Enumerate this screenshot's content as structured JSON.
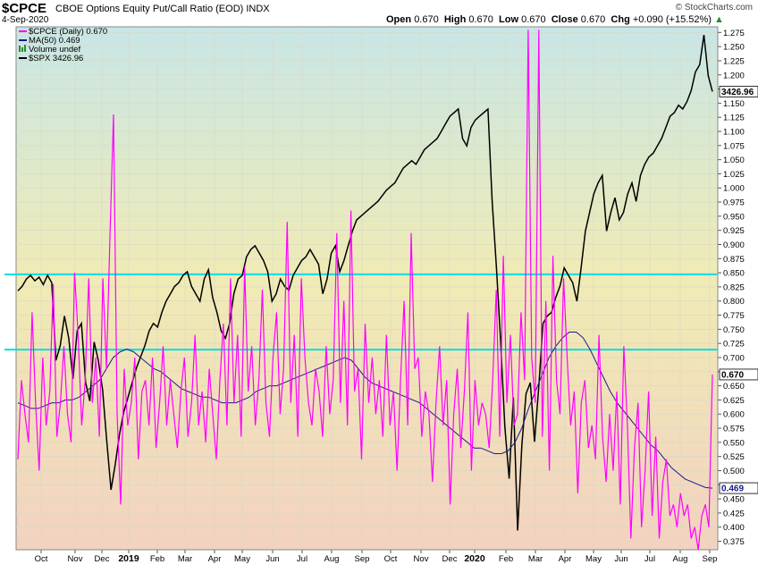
{
  "header": {
    "symbol": "$CPCE",
    "description": "CBOE Options Equity Put/Call Ratio (EOD)",
    "exchange": "INDX",
    "date": "4-Sep-2020",
    "open_label": "Open",
    "open": "0.670",
    "high_label": "High",
    "high": "0.670",
    "low_label": "Low",
    "low": "0.670",
    "close_label": "Close",
    "close": "0.670",
    "chg_label": "Chg",
    "chg": "+0.090 (+15.52%)",
    "brand": "© StockCharts.com"
  },
  "legend": [
    {
      "text": "$CPCE (Daily) 0.670",
      "color": "#ff00ff"
    },
    {
      "text": "MA(50) 0.469",
      "color": "#1a1a8c"
    },
    {
      "text": "Volume undef",
      "color": "#2e8b2e"
    },
    {
      "text": "$SPX 3426.96",
      "color": "#000000"
    }
  ],
  "colors": {
    "cpce": "#ff00ff",
    "ma": "#1a1a8c",
    "spx": "#000000",
    "hline": "#00e0e0",
    "bg_top": "#c8e6e6",
    "bg_mid": "#f0ebb4",
    "bg_bottom": "#f2d2c0"
  },
  "chart_data": {
    "type": "line",
    "title": "$CPCE CBOE Options Equity Put/Call Ratio (EOD)",
    "x_range": [
      "2018-09-10",
      "2020-09-04"
    ],
    "x_ticks": [
      "Oct",
      "Nov",
      "Dec",
      "2019",
      "Feb",
      "Mar",
      "Apr",
      "May",
      "Jun",
      "Jul",
      "Aug",
      "Sep",
      "Oct",
      "Nov",
      "Dec",
      "2020",
      "Feb",
      "Mar",
      "Apr",
      "May",
      "Jun",
      "Jul",
      "Aug",
      "Sep"
    ],
    "y_ticks": [
      "1.275",
      "1.250",
      "1.225",
      "1.200",
      "1.175",
      "1.150",
      "1.125",
      "1.100",
      "1.075",
      "1.050",
      "1.025",
      "1.000",
      "0.975",
      "0.950",
      "0.925",
      "0.900",
      "0.875",
      "0.850",
      "0.825",
      "0.800",
      "0.775",
      "0.750",
      "0.725",
      "0.700",
      "0.675",
      "0.650",
      "0.625",
      "0.600",
      "0.575",
      "0.550",
      "0.525",
      "0.500",
      "0.475",
      "0.450",
      "0.425",
      "0.400",
      "0.375"
    ],
    "ylim": [
      0.36,
      1.285
    ],
    "horizontal_lines": [
      0.847,
      0.714
    ],
    "last_labels": {
      "spx": "3426.96",
      "cpce": "0.670",
      "ma": "0.469"
    },
    "series": [
      {
        "name": "$CPCE (Daily)",
        "color": "#ff00ff",
        "values": [
          0.52,
          0.66,
          0.6,
          0.55,
          0.78,
          0.62,
          0.5,
          0.7,
          0.58,
          0.64,
          0.83,
          0.56,
          0.62,
          0.72,
          0.6,
          0.55,
          0.85,
          0.74,
          0.58,
          0.66,
          0.84,
          0.62,
          0.7,
          0.56,
          0.84,
          0.68,
          0.92,
          1.13,
          0.6,
          0.44,
          0.68,
          0.58,
          0.62,
          0.7,
          0.52,
          0.64,
          0.66,
          0.58,
          0.7,
          0.54,
          0.62,
          0.72,
          0.58,
          0.66,
          0.6,
          0.54,
          0.64,
          0.7,
          0.56,
          0.62,
          0.74,
          0.58,
          0.64,
          0.55,
          0.68,
          0.6,
          0.52,
          0.66,
          0.76,
          0.58,
          0.84,
          0.62,
          0.74,
          0.56,
          0.86,
          0.64,
          0.72,
          0.58,
          0.66,
          0.82,
          0.62,
          0.56,
          0.7,
          0.78,
          0.6,
          0.68,
          0.94,
          0.62,
          0.74,
          0.56,
          0.84,
          0.7,
          0.62,
          0.58,
          0.68,
          0.64,
          0.56,
          0.72,
          0.6,
          0.66,
          0.92,
          0.62,
          0.8,
          0.58,
          0.96,
          0.64,
          0.68,
          0.52,
          0.76,
          0.62,
          0.7,
          0.6,
          0.66,
          0.56,
          0.74,
          0.58,
          0.64,
          0.5,
          0.66,
          0.8,
          0.58,
          0.92,
          0.68,
          0.7,
          0.56,
          0.64,
          0.6,
          0.48,
          0.62,
          0.72,
          0.58,
          0.66,
          0.44,
          0.6,
          0.68,
          0.54,
          0.64,
          0.78,
          0.5,
          0.66,
          0.58,
          0.62,
          0.6,
          0.54,
          0.66,
          0.82,
          0.56,
          0.88,
          0.62,
          0.74,
          0.58,
          0.6,
          0.78,
          0.66,
          1.28,
          0.7,
          0.62,
          1.28,
          0.56,
          0.8,
          0.5,
          0.88,
          0.66,
          0.6,
          0.84,
          0.7,
          0.58,
          0.64,
          0.46,
          0.62,
          0.66,
          0.54,
          0.58,
          0.52,
          0.74,
          0.56,
          0.48,
          0.6,
          0.5,
          0.64,
          0.44,
          0.72,
          0.58,
          0.38,
          0.54,
          0.62,
          0.4,
          0.5,
          0.64,
          0.42,
          0.56,
          0.38,
          0.48,
          0.52,
          0.42,
          0.44,
          0.4,
          0.46,
          0.42,
          0.44,
          0.38,
          0.4,
          0.36,
          0.42,
          0.44,
          0.4,
          0.67
        ]
      },
      {
        "name": "MA(50)",
        "color": "#1a1a8c",
        "values": [
          0.62,
          0.615,
          0.61,
          0.61,
          0.615,
          0.62,
          0.62,
          0.625,
          0.625,
          0.63,
          0.64,
          0.65,
          0.66,
          0.68,
          0.7,
          0.71,
          0.715,
          0.71,
          0.7,
          0.69,
          0.68,
          0.675,
          0.665,
          0.655,
          0.645,
          0.64,
          0.635,
          0.63,
          0.63,
          0.625,
          0.62,
          0.62,
          0.62,
          0.625,
          0.63,
          0.64,
          0.645,
          0.65,
          0.65,
          0.655,
          0.66,
          0.665,
          0.67,
          0.675,
          0.68,
          0.685,
          0.69,
          0.695,
          0.7,
          0.695,
          0.68,
          0.665,
          0.655,
          0.65,
          0.645,
          0.64,
          0.635,
          0.63,
          0.625,
          0.62,
          0.61,
          0.6,
          0.59,
          0.58,
          0.57,
          0.56,
          0.55,
          0.54,
          0.54,
          0.535,
          0.53,
          0.53,
          0.535,
          0.55,
          0.575,
          0.61,
          0.64,
          0.67,
          0.7,
          0.72,
          0.735,
          0.745,
          0.745,
          0.735,
          0.715,
          0.69,
          0.665,
          0.64,
          0.62,
          0.605,
          0.59,
          0.575,
          0.56,
          0.545,
          0.535,
          0.52,
          0.505,
          0.495,
          0.485,
          0.48,
          0.475,
          0.47,
          0.469
        ]
      },
      {
        "name": "$SPX",
        "color": "#000000",
        "values": [
          2888,
          2900,
          2920,
          2930,
          2915,
          2925,
          2905,
          2930,
          2910,
          2700,
          2740,
          2820,
          2760,
          2650,
          2780,
          2800,
          2640,
          2590,
          2750,
          2700,
          2620,
          2480,
          2350,
          2420,
          2500,
          2560,
          2600,
          2640,
          2680,
          2710,
          2740,
          2780,
          2800,
          2790,
          2830,
          2860,
          2880,
          2900,
          2910,
          2930,
          2940,
          2900,
          2880,
          2860,
          2920,
          2945,
          2870,
          2830,
          2780,
          2760,
          2800,
          2880,
          2920,
          2930,
          2980,
          3000,
          3010,
          2990,
          2970,
          2940,
          2860,
          2880,
          2920,
          2900,
          2890,
          2930,
          2950,
          2970,
          2980,
          3000,
          2980,
          2960,
          2880,
          2920,
          2990,
          3010,
          2940,
          2970,
          3010,
          3050,
          3080,
          3090,
          3100,
          3110,
          3120,
          3130,
          3145,
          3160,
          3170,
          3180,
          3200,
          3220,
          3230,
          3240,
          3230,
          3250,
          3270,
          3280,
          3290,
          3300,
          3320,
          3340,
          3360,
          3370,
          3380,
          3300,
          3280,
          3330,
          3350,
          3360,
          3370,
          3380,
          3130,
          2950,
          2750,
          2520,
          2380,
          2600,
          2240,
          2470,
          2610,
          2640,
          2480,
          2630,
          2800,
          2820,
          2830,
          2870,
          2900,
          2950,
          2930,
          2910,
          2860,
          2950,
          3050,
          3100,
          3150,
          3180,
          3200,
          3050,
          3100,
          3140,
          3080,
          3100,
          3150,
          3180,
          3130,
          3200,
          3230,
          3250,
          3260,
          3280,
          3300,
          3330,
          3360,
          3370,
          3390,
          3380,
          3400,
          3430,
          3480,
          3500,
          3580,
          3470,
          3426.96
        ]
      }
    ]
  }
}
